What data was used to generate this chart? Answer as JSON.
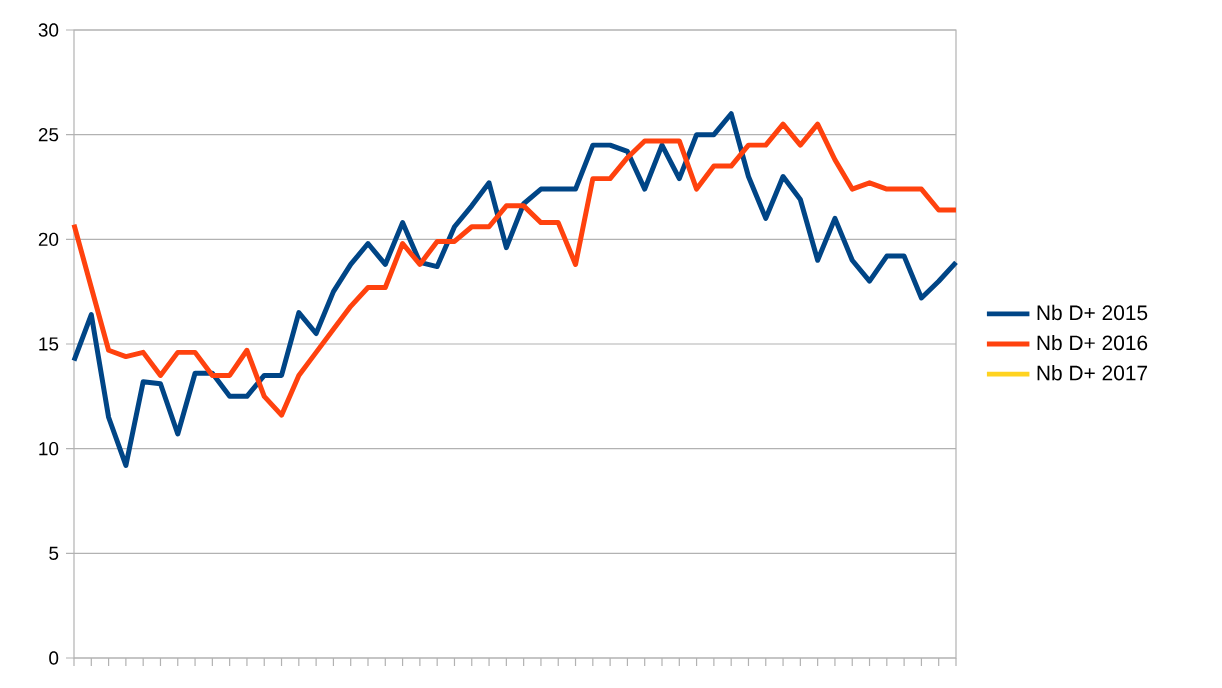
{
  "chart_data": {
    "type": "line",
    "categories": [
      null,
      null,
      null,
      null,
      null,
      null,
      null,
      null,
      null,
      null,
      null,
      null,
      null,
      null,
      null,
      null,
      null,
      null,
      null,
      null,
      null,
      null,
      null,
      null,
      null,
      null,
      null,
      null,
      null,
      null,
      null,
      null,
      null,
      null,
      null,
      null,
      null,
      null,
      null,
      null,
      null,
      null,
      null,
      null,
      null,
      null,
      null,
      null,
      null,
      null,
      null,
      null
    ],
    "series": [
      {
        "name": "Nb D+ 2015",
        "color": "#004586",
        "values": [
          14.2,
          16.4,
          11.5,
          9.2,
          13.2,
          13.1,
          10.7,
          13.6,
          13.6,
          12.5,
          12.5,
          13.5,
          13.5,
          16.5,
          15.5,
          17.5,
          18.8,
          19.8,
          18.8,
          20.8,
          18.9,
          18.7,
          20.6,
          21.6,
          22.7,
          19.6,
          21.7,
          22.4,
          22.4,
          22.4,
          24.5,
          24.5,
          24.2,
          22.4,
          24.5,
          22.9,
          25.0,
          25.0,
          26.0,
          23.0,
          21.0,
          23.0,
          21.9,
          19.0,
          21.0,
          19.0,
          18.0,
          19.2,
          19.2,
          17.2,
          18.0,
          18.9
        ]
      },
      {
        "name": "Nb D+ 2016",
        "color": "#ff420e",
        "values": [
          20.7,
          17.7,
          14.7,
          14.4,
          14.6,
          13.5,
          14.6,
          14.6,
          13.5,
          13.5,
          14.7,
          12.5,
          11.6,
          13.5,
          14.6,
          15.7,
          16.8,
          17.7,
          17.7,
          19.8,
          18.8,
          19.9,
          19.9,
          20.6,
          20.6,
          21.6,
          21.6,
          20.8,
          20.8,
          18.8,
          22.9,
          22.9,
          23.9,
          24.7,
          24.7,
          24.7,
          22.4,
          23.5,
          23.5,
          24.5,
          24.5,
          25.5,
          24.5,
          25.5,
          23.8,
          22.4,
          22.7,
          22.4,
          22.4,
          22.4,
          21.4,
          21.4
        ]
      },
      {
        "name": "Nb D+ 2017",
        "color": "#ffd320",
        "values": [
          null,
          null,
          null,
          null,
          null,
          null,
          null,
          null,
          null,
          null,
          null,
          null,
          null,
          null,
          null,
          null,
          null,
          null,
          null,
          null,
          null,
          null,
          null,
          null,
          null,
          null,
          null,
          null,
          null,
          null,
          null,
          null,
          null,
          null,
          null,
          null,
          null,
          null,
          null,
          null,
          null,
          null,
          null,
          null,
          null,
          null,
          null,
          null,
          null,
          null,
          null,
          null
        ]
      }
    ],
    "ylim": [
      0,
      30
    ],
    "yticks": [
      0,
      5,
      10,
      15,
      20,
      25,
      30
    ],
    "grid": "y",
    "legend": "right",
    "tick_labels": "y",
    "marker": "none",
    "line_style": "solid"
  }
}
